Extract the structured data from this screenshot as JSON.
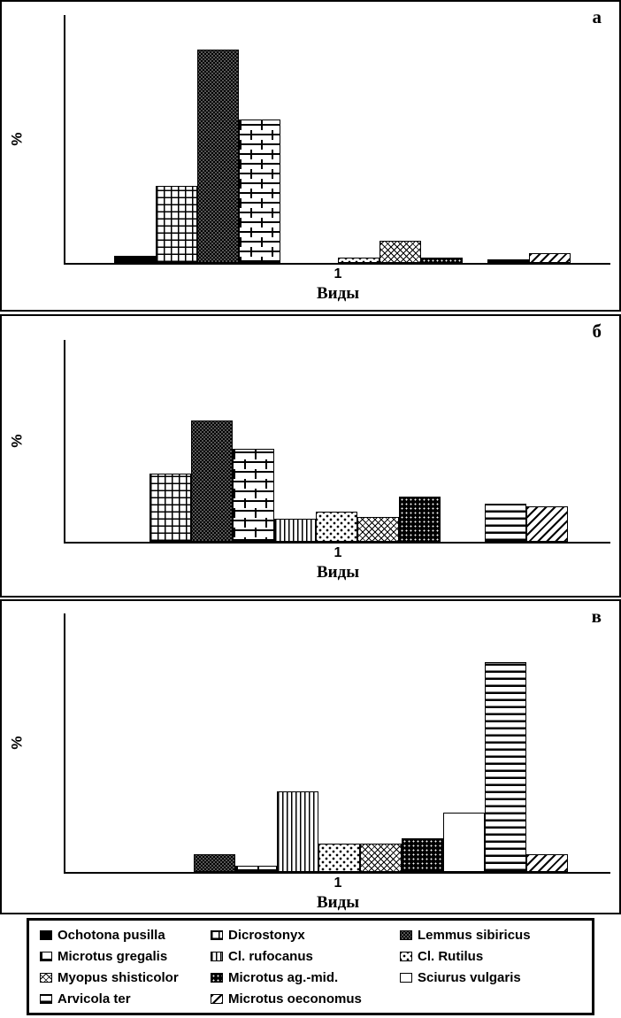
{
  "colors": {
    "ink": "#000000",
    "paper": "#ffffff"
  },
  "legend": {
    "items": [
      {
        "name": "Ochotona pusilla",
        "pattern": "solid"
      },
      {
        "name": "Dicrostonyx",
        "pattern": "grid"
      },
      {
        "name": "Lemmus sibiricus",
        "pattern": "dense"
      },
      {
        "name": "Microtus gregalis",
        "pattern": "brick"
      },
      {
        "name": "Cl. rufocanus",
        "pattern": "vlines"
      },
      {
        "name": "Cl. Rutilus",
        "pattern": "dots"
      },
      {
        "name": "Myopus shisticolor",
        "pattern": "crosshatch"
      },
      {
        "name": "Microtus ag.-mid.",
        "pattern": "darkdots"
      },
      {
        "name": "Sciurus vulgaris",
        "pattern": "white"
      },
      {
        "name": "Arvicola ter",
        "pattern": "hlines"
      },
      {
        "name": "Microtus oeconomus",
        "pattern": "diag"
      }
    ]
  },
  "chart_data": [
    {
      "type": "bar",
      "panel_label": "а",
      "ylabel": "%",
      "xlabel": "Виды",
      "x_tick_label": "1",
      "ylim": [
        0,
        50
      ],
      "yticks": [
        0,
        10,
        20,
        30,
        40,
        50
      ],
      "legend_position": "none",
      "grid": false,
      "bars": [
        {
          "species": "Ochotona pusilla",
          "pattern": "solid",
          "value": 1.5,
          "group": 0
        },
        {
          "species": "Dicrostonyx",
          "pattern": "grid",
          "value": 15.5,
          "group": 0
        },
        {
          "species": "Lemmus sibiricus",
          "pattern": "dense",
          "value": 43,
          "group": 0
        },
        {
          "species": "Microtus gregalis",
          "pattern": "brick",
          "value": 29,
          "group": 0
        },
        {
          "species": "Cl. Rutilus",
          "pattern": "dots",
          "value": 1,
          "group": 1
        },
        {
          "species": "Myopus shisticolor",
          "pattern": "crosshatch",
          "value": 4.5,
          "group": 1
        },
        {
          "species": "Microtus ag.-mid.",
          "pattern": "darkdots",
          "value": 1,
          "group": 1
        },
        {
          "species": "Arvicola ter",
          "pattern": "hlines",
          "value": 0.8,
          "group": 2
        },
        {
          "species": "Microtus oeconomus",
          "pattern": "diag",
          "value": 2,
          "group": 2
        }
      ]
    },
    {
      "type": "bar",
      "panel_label": "б",
      "ylabel": "%",
      "xlabel": "Виды",
      "x_tick_label": "1",
      "ylim": [
        0,
        40
      ],
      "yticks": [
        0,
        10,
        20,
        30,
        40
      ],
      "legend_position": "none",
      "grid": false,
      "bars": [
        {
          "species": "Dicrostonyx",
          "pattern": "grid",
          "value": 13.5,
          "group": 0
        },
        {
          "species": "Lemmus sibiricus",
          "pattern": "dense",
          "value": 24,
          "group": 0
        },
        {
          "species": "Microtus gregalis",
          "pattern": "brick",
          "value": 18.5,
          "group": 0
        },
        {
          "species": "Cl. rufocanus",
          "pattern": "vlines",
          "value": 4.5,
          "group": 0
        },
        {
          "species": "Cl. Rutilus",
          "pattern": "dots",
          "value": 6,
          "group": 0
        },
        {
          "species": "Myopus shisticolor",
          "pattern": "crosshatch",
          "value": 5,
          "group": 0
        },
        {
          "species": "Microtus ag.-mid.",
          "pattern": "darkdots",
          "value": 9,
          "group": 0
        },
        {
          "species": "Arvicola ter",
          "pattern": "hlines",
          "value": 7.5,
          "group": 1
        },
        {
          "species": "Microtus oeconomus",
          "pattern": "diag",
          "value": 7,
          "group": 1
        }
      ]
    },
    {
      "type": "bar",
      "panel_label": "в",
      "ylabel": "%",
      "xlabel": "Виды",
      "x_tick_label": "1",
      "ylim": [
        0,
        50
      ],
      "yticks": [
        0,
        10,
        20,
        30,
        40,
        50
      ],
      "legend_position": "none",
      "grid": false,
      "bars": [
        {
          "species": "Lemmus sibiricus",
          "pattern": "dense",
          "value": 3.5,
          "group": 0
        },
        {
          "species": "Microtus gregalis",
          "pattern": "brick",
          "value": 1.2,
          "group": 0
        },
        {
          "species": "Cl. rufocanus",
          "pattern": "vlines",
          "value": 15.5,
          "group": 0
        },
        {
          "species": "Cl. Rutilus",
          "pattern": "dots",
          "value": 5.5,
          "group": 0
        },
        {
          "species": "Myopus shisticolor",
          "pattern": "crosshatch",
          "value": 5.5,
          "group": 0
        },
        {
          "species": "Microtus ag.-mid.",
          "pattern": "darkdots",
          "value": 6.5,
          "group": 0
        },
        {
          "species": "Sciurus vulgaris",
          "pattern": "white",
          "value": 11.5,
          "group": 0
        },
        {
          "species": "Arvicola ter",
          "pattern": "hlines",
          "value": 40.5,
          "group": 0
        },
        {
          "species": "Microtus oeconomus",
          "pattern": "diag",
          "value": 3.5,
          "group": 0
        }
      ]
    }
  ]
}
